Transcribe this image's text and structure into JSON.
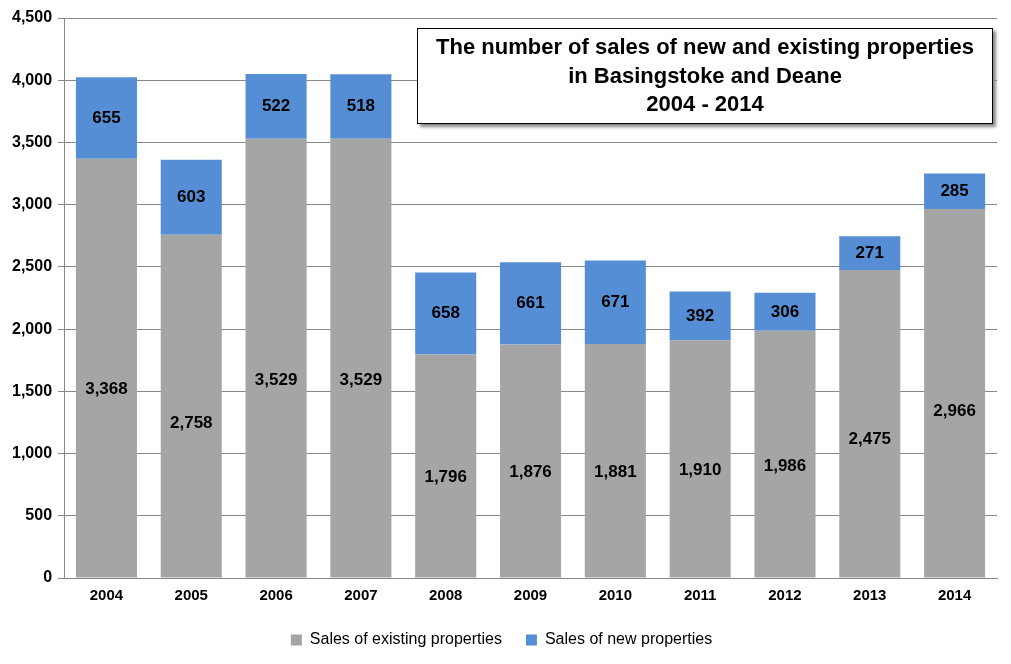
{
  "chart_data": {
    "type": "bar",
    "title": "The number of sales of new and existing properties\nin Basingstoke and Deane\n2004 - 2014",
    "categories": [
      "2004",
      "2005",
      "2006",
      "2007",
      "2008",
      "2009",
      "2010",
      "2011",
      "2012",
      "2013",
      "2014"
    ],
    "series": [
      {
        "name": "Sales of existing properties",
        "color": "#a5a5a5",
        "values": [
          3368,
          2758,
          3529,
          3529,
          1796,
          1876,
          1881,
          1910,
          1986,
          2475,
          2966
        ],
        "value_labels": [
          "3,368",
          "2,758",
          "3,529",
          "3,529",
          "1,796",
          "1,876",
          "1,881",
          "1,910",
          "1,986",
          "2,475",
          "2,966"
        ]
      },
      {
        "name": "Sales of new properties",
        "color": "#558ed5",
        "values": [
          655,
          603,
          522,
          518,
          658,
          661,
          671,
          392,
          306,
          271,
          285
        ],
        "value_labels": [
          "655",
          "603",
          "522",
          "518",
          "658",
          "661",
          "671",
          "392",
          "306",
          "271",
          "285"
        ]
      }
    ],
    "stacked": true,
    "grid": "y",
    "legend": "bottom",
    "ylim": [
      0,
      4500
    ],
    "yticks": [
      0,
      500,
      {
        "value": 1000,
        "label": "1,000"
      },
      {
        "value": 1500,
        "label": "1,500"
      },
      {
        "value": 2000,
        "label": "2,000"
      },
      {
        "value": 2500,
        "label": "2,500"
      },
      {
        "value": 3000,
        "label": "3,000"
      },
      {
        "value": 3500,
        "label": "3,500"
      },
      {
        "value": 4000,
        "label": "4,000"
      },
      {
        "value": 4500,
        "label": "4,500"
      }
    ]
  }
}
